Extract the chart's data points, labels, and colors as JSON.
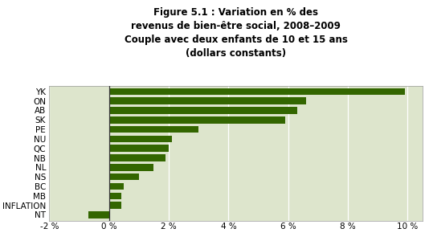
{
  "title_line1": "Figure 5.1 : Variation en % des",
  "title_line2": "revenus de bien-être social, 2008–2009",
  "title_line3": "Couple avec deux enfants de 10 et 15 ans",
  "title_line4": "(dollars constants)",
  "categories": [
    "YK",
    "ON",
    "AB",
    "SK",
    "PE",
    "NU",
    "QC",
    "NB",
    "NL",
    "NS",
    "BC",
    "MB",
    "INFLATION",
    "NT"
  ],
  "values": [
    9.9,
    6.6,
    6.3,
    5.9,
    3.0,
    2.1,
    2.0,
    1.9,
    1.5,
    1.0,
    0.5,
    0.4,
    0.4,
    -0.7
  ],
  "bar_color": "#336600",
  "background_color": "#dde5cc",
  "fig_background": "#ffffff",
  "xlim": [
    -2.0,
    10.5
  ],
  "xticks": [
    -2,
    0,
    2,
    4,
    6,
    8,
    10
  ],
  "xtick_labels": [
    "-2 %",
    "0 %",
    "2 %",
    "4 %",
    "6 %",
    "8 %",
    "10 %"
  ],
  "title_fontsize": 8.5,
  "label_fontsize": 7.5,
  "bar_height": 0.72
}
